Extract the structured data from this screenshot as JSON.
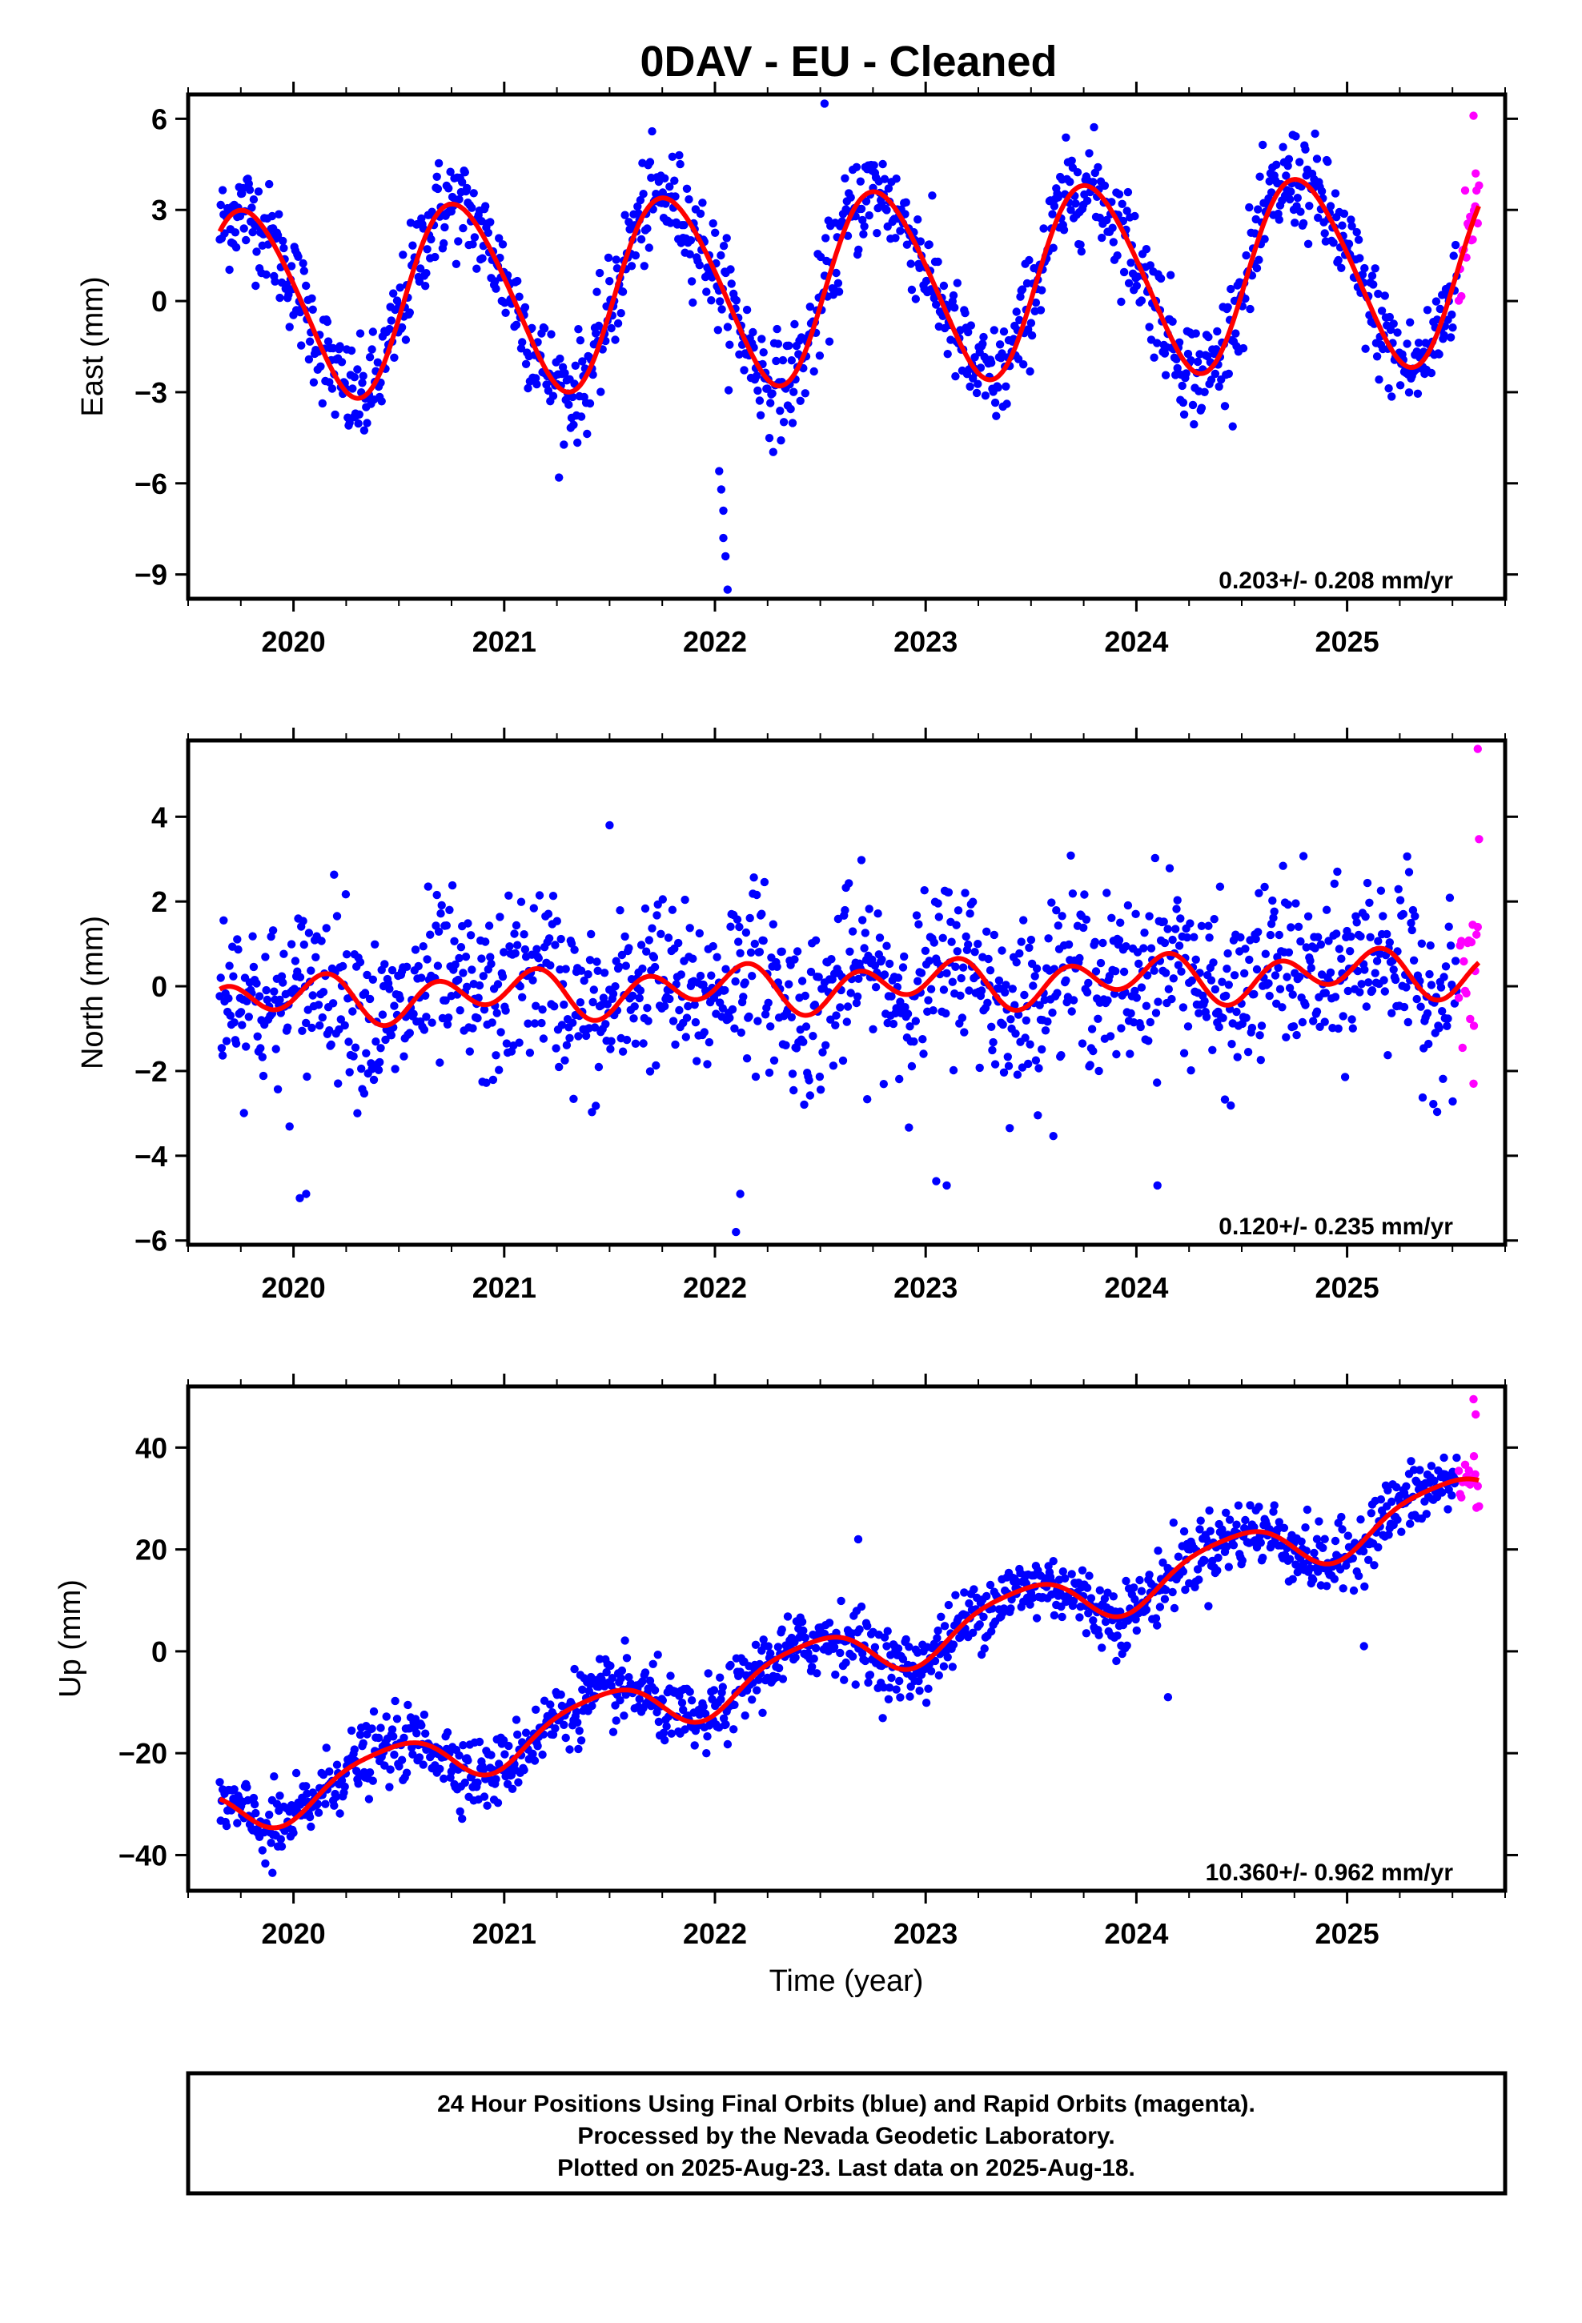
{
  "page_title": "0DAV  - EU - Cleaned",
  "colors": {
    "final_orbits": "#0000ff",
    "rapid_orbits": "#ff00ff",
    "model_fit": "#ff0000",
    "frame": "#000000"
  },
  "chart_data": [
    {
      "type": "scatter",
      "id": "east",
      "ylabel": "East (mm)",
      "xlabel": "",
      "xlim": [
        2019.5,
        2025.75
      ],
      "ylim": [
        -9.8,
        6.8
      ],
      "x_ticks": [
        2020,
        2021,
        2022,
        2023,
        2024,
        2025
      ],
      "x_tick_labels": [
        "2020",
        "2021",
        "2022",
        "2023",
        "2024",
        "2025"
      ],
      "y_ticks": [
        -9,
        -6,
        -3,
        0,
        3,
        6
      ],
      "y_tick_labels": [
        "−9",
        "−6",
        "−3",
        "0",
        "3",
        "6"
      ],
      "rate_label": "0.203+/- 0.208 mm/yr",
      "fit": {
        "offset": -0.1,
        "slope": 0.203,
        "amp1": 3.1,
        "phase1": 0.2,
        "amp2": 0.3,
        "phase2": 0.1
      },
      "scatter_sd": 0.85,
      "series": [
        {
          "name": "Final Orbits",
          "x_range": [
            2019.65,
            2025.52
          ],
          "color_key": "final_orbits"
        },
        {
          "name": "Rapid Orbits",
          "x_range": [
            2025.53,
            2025.63
          ],
          "color_key": "rapid_orbits"
        }
      ],
      "outliers": [
        {
          "x": 2022.02,
          "y": -5.6
        },
        {
          "x": 2022.03,
          "y": -6.2
        },
        {
          "x": 2022.04,
          "y": -6.9
        },
        {
          "x": 2022.04,
          "y": -7.8
        },
        {
          "x": 2022.05,
          "y": -8.4
        },
        {
          "x": 2022.06,
          "y": -9.5
        },
        {
          "x": 2022.52,
          "y": 6.5
        },
        {
          "x": 2025.6,
          "y": 6.1
        },
        {
          "x": 2025.61,
          "y": 4.2
        }
      ]
    },
    {
      "type": "scatter",
      "id": "north",
      "ylabel": "North (mm)",
      "xlabel": "",
      "xlim": [
        2019.5,
        2025.75
      ],
      "ylim": [
        -6.1,
        5.8
      ],
      "x_ticks": [
        2020,
        2021,
        2022,
        2023,
        2024,
        2025
      ],
      "x_tick_labels": [
        "2020",
        "2021",
        "2022",
        "2023",
        "2024",
        "2025"
      ],
      "y_ticks": [
        -6,
        -4,
        -2,
        0,
        2,
        4
      ],
      "y_tick_labels": [
        "−6",
        "−4",
        "−2",
        "0",
        "2",
        "4"
      ],
      "rate_label": "0.120+/- 0.235 mm/yr",
      "fit": {
        "offset": -0.35,
        "slope": 0.12,
        "amp1": 0.25,
        "phase1": 1.6,
        "amp2": 0.45,
        "phase2": 0.6
      },
      "scatter_sd": 1.0,
      "series": [
        {
          "name": "Final Orbits",
          "x_range": [
            2019.65,
            2025.52
          ],
          "color_key": "final_orbits"
        },
        {
          "name": "Rapid Orbits",
          "x_range": [
            2025.53,
            2025.63
          ],
          "color_key": "rapid_orbits"
        }
      ],
      "outliers": [
        {
          "x": 2020.03,
          "y": -5.0
        },
        {
          "x": 2020.06,
          "y": -4.9
        },
        {
          "x": 2022.1,
          "y": -5.8
        },
        {
          "x": 2022.12,
          "y": -4.9
        },
        {
          "x": 2023.05,
          "y": -4.6
        },
        {
          "x": 2023.1,
          "y": -4.7
        },
        {
          "x": 2025.62,
          "y": 5.6
        },
        {
          "x": 2025.6,
          "y": -2.3
        },
        {
          "x": 2021.5,
          "y": 3.8
        },
        {
          "x": 2024.1,
          "y": -4.7
        }
      ]
    },
    {
      "type": "scatter",
      "id": "up",
      "ylabel": "Up (mm)",
      "xlabel": "Time (year)",
      "xlim": [
        2019.5,
        2025.75
      ],
      "ylim": [
        -47,
        52
      ],
      "x_ticks": [
        2020,
        2021,
        2022,
        2023,
        2024,
        2025
      ],
      "x_tick_labels": [
        "2020",
        "2021",
        "2022",
        "2023",
        "2024",
        "2025"
      ],
      "y_ticks": [
        -40,
        -20,
        0,
        20,
        40
      ],
      "y_tick_labels": [
        "−40",
        "−20",
        "0",
        "20",
        "40"
      ],
      "rate_label": "10.360+/- 0.962 mm/yr",
      "fit": {
        "offset": -31.5,
        "slope": 10.36,
        "amp1": 5.0,
        "phase1": 4.4,
        "amp2": 1.0,
        "phase2": 0.5
      },
      "scatter_sd": 3.4,
      "series": [
        {
          "name": "Final Orbits",
          "x_range": [
            2019.65,
            2025.52
          ],
          "color_key": "final_orbits"
        },
        {
          "name": "Rapid Orbits",
          "x_range": [
            2025.53,
            2025.63
          ],
          "color_key": "rapid_orbits"
        }
      ],
      "outliers": [
        {
          "x": 2019.9,
          "y": -43.5
        },
        {
          "x": 2025.08,
          "y": 1.0
        },
        {
          "x": 2025.6,
          "y": 49.5
        },
        {
          "x": 2025.61,
          "y": 46.5
        },
        {
          "x": 2022.68,
          "y": 22.0
        },
        {
          "x": 2024.15,
          "y": -9.0
        }
      ]
    }
  ],
  "footer": {
    "line1": "24 Hour Positions Using Final Orbits (blue) and Rapid Orbits (magenta).",
    "line2": "Processed by the Nevada Geodetic Laboratory.",
    "line3": "Plotted on 2025-Aug-23. Last data on 2025-Aug-18."
  }
}
